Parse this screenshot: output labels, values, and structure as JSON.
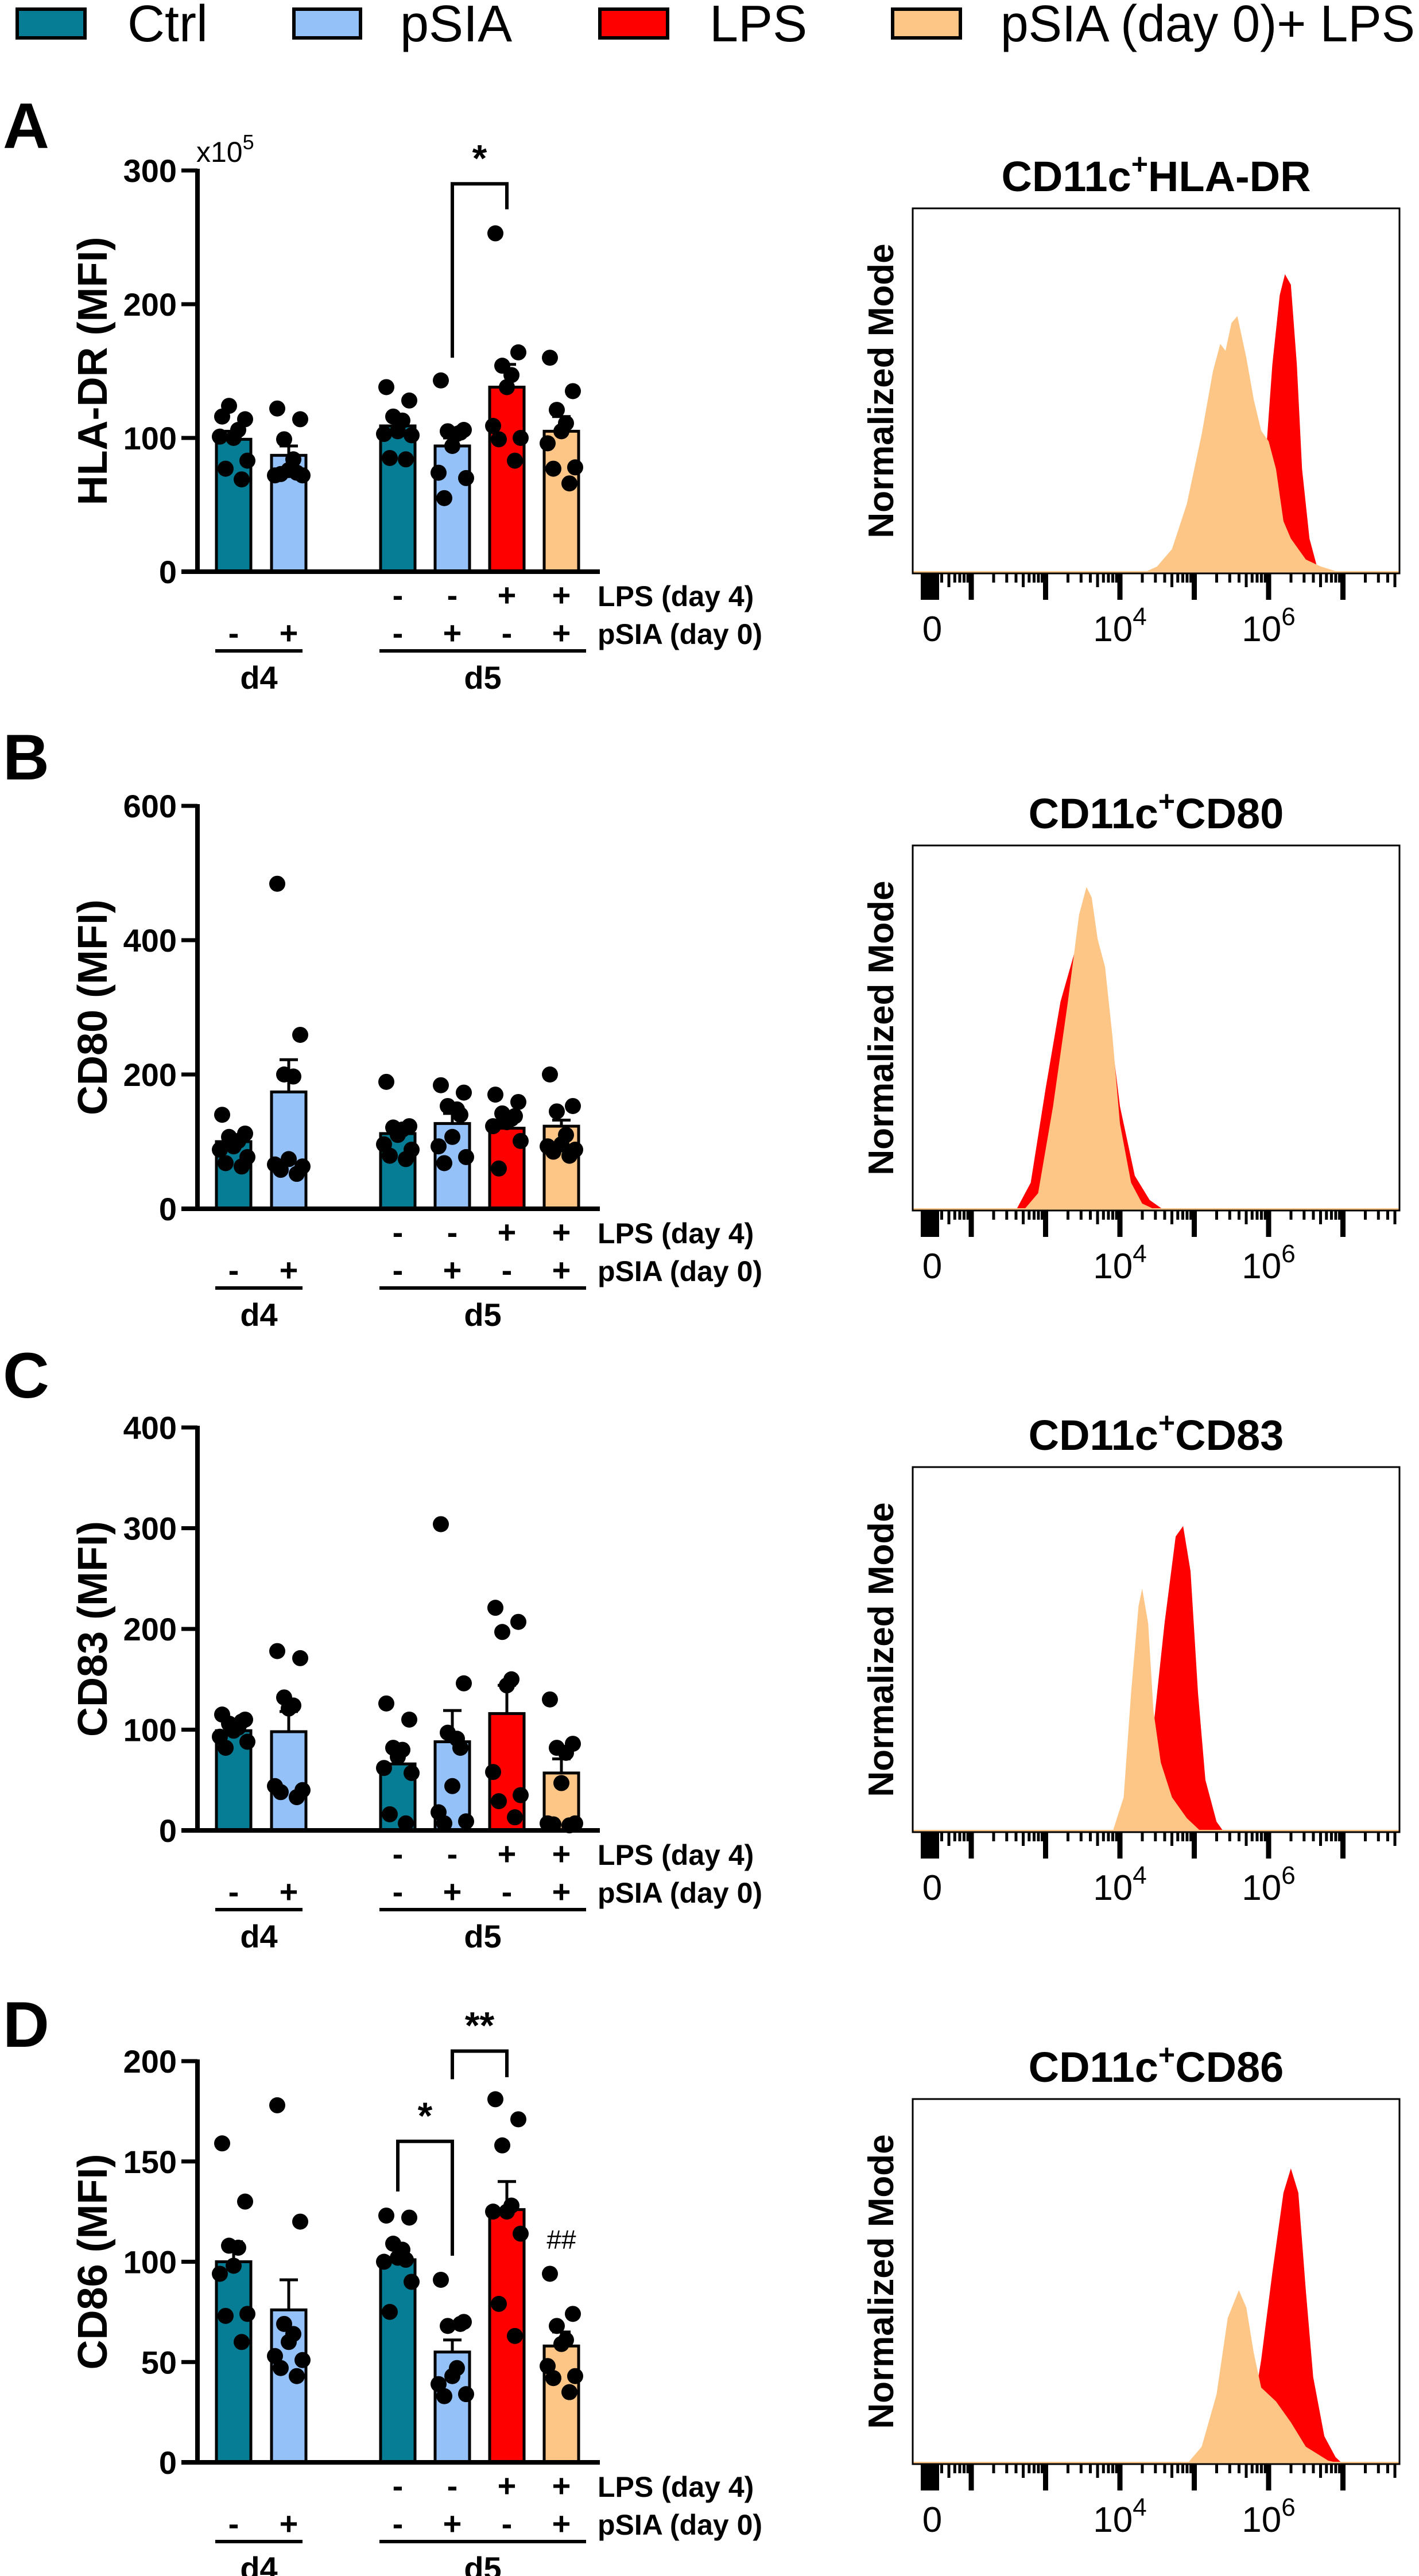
{
  "colors": {
    "Ctrl": "#067d94",
    "pSIA": "#94c1f8",
    "LPS": "#fe0000",
    "pSIA_LPS": "#fdc687"
  },
  "legend": [
    {
      "label": "Ctrl",
      "color": "#067d94"
    },
    {
      "label": "pSIA",
      "color": "#94c1f8"
    },
    {
      "label": "LPS",
      "color": "#fe0000"
    },
    {
      "label": "pSIA (day 0)+ LPS",
      "color": "#fdc687"
    }
  ],
  "chart_data": [
    {
      "panel": "A",
      "type": "bar",
      "ylabel": "HLA-DR (MFI)",
      "y_multiplier": {
        "base": "x10",
        "exp": "5"
      },
      "ylim": [
        0,
        300
      ],
      "yticks": [
        0,
        100,
        200,
        300
      ],
      "categories": [
        "Ctrl d4",
        "pSIA d4",
        "Ctrl d5",
        "pSIA d5",
        "LPS d5",
        "pSIA (day 0)+ LPS d5"
      ],
      "bar_colors": [
        "#067d94",
        "#94c1f8",
        "#067d94",
        "#94c1f8",
        "#fe0000",
        "#fdc687"
      ],
      "values": [
        99,
        87,
        109,
        94,
        138,
        105
      ],
      "sem": [
        6,
        7,
        5,
        6,
        17,
        11
      ],
      "points": [
        [
          116,
          114,
          124,
          106,
          100,
          101,
          83,
          77,
          69
        ],
        [
          122,
          114,
          99,
          84,
          76,
          72,
          72,
          73,
          74
        ],
        [
          138,
          128,
          116,
          113,
          105,
          103,
          102,
          85,
          84
        ],
        [
          143,
          106,
          105,
          103,
          94,
          74,
          70,
          55,
          104
        ],
        [
          253,
          164,
          154,
          147,
          138,
          109,
          100,
          99,
          83
        ],
        [
          160,
          135,
          121,
          111,
          105,
          96,
          78,
          77,
          66
        ]
      ],
      "significance": [
        {
          "from": 3,
          "to": 4,
          "label": "*",
          "y_top": 290,
          "left_from": 160,
          "right_to": 271
        }
      ],
      "annotations": [],
      "row_names": [
        "LPS (day 4)",
        "pSIA (day 0)"
      ],
      "row_lps": [
        "",
        "",
        "-",
        "-",
        "+",
        "+"
      ],
      "row_psia": [
        "-",
        "+",
        "-",
        "+",
        "-",
        "+"
      ],
      "groups": [
        {
          "label": "d4",
          "from": 0,
          "to": 1
        },
        {
          "label": "d5",
          "from": 2,
          "to": 5
        }
      ]
    },
    {
      "panel": "A",
      "type": "area",
      "title": {
        "main": "CD11c",
        "sup": "+",
        "rest": "HLA-DR"
      },
      "ylabel": "Normalized Mode",
      "x_scale": "log10",
      "xticks": [
        {
          "value": 0,
          "label": "0"
        },
        {
          "value": 4,
          "base": "10",
          "exp": "4"
        },
        {
          "value": 6,
          "base": "10",
          "exp": "6"
        }
      ],
      "series": [
        {
          "name": "LPS",
          "color": "#fe0000",
          "points": [
            [
              5.7,
              0
            ],
            [
              5.85,
              0.1
            ],
            [
              5.95,
              0.3
            ],
            [
              6.05,
              0.6
            ],
            [
              6.15,
              0.8
            ],
            [
              6.22,
              0.86
            ],
            [
              6.3,
              0.83
            ],
            [
              6.38,
              0.6
            ],
            [
              6.45,
              0.3
            ],
            [
              6.55,
              0.1
            ],
            [
              6.65,
              0.02
            ],
            [
              6.8,
              0
            ]
          ]
        },
        {
          "name": "pSIA (day 0)+ LPS",
          "color": "#fdc687",
          "points": [
            [
              4.3,
              0
            ],
            [
              4.5,
              0.02
            ],
            [
              4.7,
              0.07
            ],
            [
              4.9,
              0.2
            ],
            [
              5.1,
              0.4
            ],
            [
              5.25,
              0.58
            ],
            [
              5.35,
              0.66
            ],
            [
              5.42,
              0.64
            ],
            [
              5.5,
              0.72
            ],
            [
              5.58,
              0.74
            ],
            [
              5.7,
              0.62
            ],
            [
              5.8,
              0.5
            ],
            [
              5.9,
              0.41
            ],
            [
              6.0,
              0.38
            ],
            [
              6.1,
              0.3
            ],
            [
              6.2,
              0.15
            ],
            [
              6.3,
              0.1
            ],
            [
              6.5,
              0.04
            ],
            [
              6.7,
              0.02
            ],
            [
              7.0,
              0
            ]
          ]
        }
      ]
    },
    {
      "panel": "B",
      "type": "bar",
      "ylabel": "CD80 (MFI)",
      "ylim": [
        0,
        600
      ],
      "yticks": [
        0,
        200,
        400,
        600
      ],
      "categories": [
        "Ctrl d4",
        "pSIA d4",
        "Ctrl d5",
        "pSIA d5",
        "LPS d5",
        "pSIA (day 0)+ LPS d5"
      ],
      "bar_colors": [
        "#067d94",
        "#94c1f8",
        "#067d94",
        "#94c1f8",
        "#fe0000",
        "#fdc687"
      ],
      "values": [
        100,
        174,
        112,
        127,
        120,
        123
      ],
      "sem": [
        8,
        48,
        11,
        15,
        10,
        9
      ],
      "points": [
        [
          140,
          112,
          107,
          101,
          93,
          88,
          77,
          68,
          63
        ],
        [
          484,
          259,
          200,
          197,
          74,
          66,
          63,
          58,
          52
        ],
        [
          189,
          123,
          121,
          118,
          110,
          96,
          88,
          79,
          74
        ],
        [
          184,
          173,
          153,
          148,
          107,
          93,
          77,
          68,
          140
        ],
        [
          170,
          159,
          142,
          134,
          129,
          123,
          101,
          60,
          138
        ],
        [
          200,
          153,
          145,
          110,
          96,
          93,
          88,
          85,
          79
        ]
      ],
      "significance": [],
      "annotations": [],
      "row_names": [
        "LPS (day 4)",
        "pSIA (day 0)"
      ],
      "row_lps": [
        "",
        "",
        "-",
        "-",
        "+",
        "+"
      ],
      "row_psia": [
        "-",
        "+",
        "-",
        "+",
        "-",
        "+"
      ],
      "groups": [
        {
          "label": "d4",
          "from": 0,
          "to": 1
        },
        {
          "label": "d5",
          "from": 2,
          "to": 5
        }
      ]
    },
    {
      "panel": "B",
      "type": "area",
      "title": {
        "main": "CD11c",
        "sup": "+",
        "rest": "CD80"
      },
      "ylabel": "Normalized Mode",
      "x_scale": "log10",
      "xticks": [
        {
          "value": 0,
          "label": "0"
        },
        {
          "value": 4,
          "base": "10",
          "exp": "4"
        },
        {
          "value": 6,
          "base": "10",
          "exp": "6"
        }
      ],
      "series": [
        {
          "name": "LPS",
          "color": "#fe0000",
          "points": [
            [
              2.6,
              0
            ],
            [
              2.8,
              0.08
            ],
            [
              3.0,
              0.35
            ],
            [
              3.2,
              0.6
            ],
            [
              3.4,
              0.75
            ],
            [
              3.6,
              0.8
            ],
            [
              3.8,
              0.65
            ],
            [
              4.0,
              0.3
            ],
            [
              4.2,
              0.1
            ],
            [
              4.4,
              0.03
            ],
            [
              4.6,
              0
            ]
          ]
        },
        {
          "name": "pSIA (day 0)+ LPS",
          "color": "#fdc687",
          "points": [
            [
              2.7,
              0
            ],
            [
              2.9,
              0.05
            ],
            [
              3.1,
              0.3
            ],
            [
              3.3,
              0.6
            ],
            [
              3.45,
              0.85
            ],
            [
              3.55,
              0.93
            ],
            [
              3.62,
              0.9
            ],
            [
              3.7,
              0.78
            ],
            [
              3.8,
              0.7
            ],
            [
              3.9,
              0.5
            ],
            [
              4.0,
              0.25
            ],
            [
              4.15,
              0.08
            ],
            [
              4.3,
              0.02
            ],
            [
              4.5,
              0
            ]
          ]
        }
      ]
    },
    {
      "panel": "C",
      "type": "bar",
      "ylabel": "CD83 (MFI)",
      "ylim": [
        0,
        400
      ],
      "yticks": [
        0,
        100,
        200,
        300,
        400
      ],
      "categories": [
        "Ctrl d4",
        "pSIA d4",
        "Ctrl d5",
        "pSIA d5",
        "LPS d5",
        "pSIA (day 0)+ LPS d5"
      ],
      "bar_colors": [
        "#067d94",
        "#94c1f8",
        "#067d94",
        "#94c1f8",
        "#fe0000",
        "#fdc687"
      ],
      "values": [
        99,
        98,
        66,
        88,
        116,
        57
      ],
      "sem": [
        4,
        20,
        14,
        31,
        28,
        14
      ],
      "points": [
        [
          115,
          110,
          106,
          102,
          99,
          93,
          88,
          82,
          108
        ],
        [
          178,
          171,
          132,
          124,
          121,
          44,
          40,
          38,
          33
        ],
        [
          126,
          110,
          82,
          80,
          73,
          62,
          57,
          16,
          7
        ],
        [
          304,
          146,
          97,
          91,
          44,
          18,
          9,
          7,
          82
        ],
        [
          221,
          207,
          197,
          150,
          144,
          58,
          35,
          29,
          13
        ],
        [
          130,
          86,
          82,
          77,
          47,
          7,
          7,
          6,
          5
        ]
      ],
      "significance": [],
      "annotations": [],
      "row_names": [
        "LPS (day 4)",
        "pSIA (day 0)"
      ],
      "row_lps": [
        "",
        "",
        "-",
        "-",
        "+",
        "+"
      ],
      "row_psia": [
        "-",
        "+",
        "-",
        "+",
        "-",
        "+"
      ],
      "groups": [
        {
          "label": "d4",
          "from": 0,
          "to": 1
        },
        {
          "label": "d5",
          "from": 2,
          "to": 5
        }
      ]
    },
    {
      "panel": "C",
      "type": "area",
      "title": {
        "main": "CD11c",
        "sup": "+",
        "rest": "CD83"
      },
      "ylabel": "Normalized Mode",
      "x_scale": "log10",
      "xticks": [
        {
          "value": 0,
          "label": "0"
        },
        {
          "value": 4,
          "base": "10",
          "exp": "4"
        },
        {
          "value": 6,
          "base": "10",
          "exp": "6"
        }
      ],
      "series": [
        {
          "name": "LPS",
          "color": "#fe0000",
          "points": [
            [
              4.3,
              0
            ],
            [
              4.45,
              0.3
            ],
            [
              4.6,
              0.6
            ],
            [
              4.75,
              0.85
            ],
            [
              4.85,
              0.88
            ],
            [
              4.95,
              0.75
            ],
            [
              5.05,
              0.4
            ],
            [
              5.15,
              0.15
            ],
            [
              5.3,
              0.03
            ],
            [
              5.4,
              0
            ]
          ]
        },
        {
          "name": "pSIA (day 0)+ LPS",
          "color": "#fdc687",
          "points": [
            [
              3.9,
              0
            ],
            [
              4.05,
              0.1
            ],
            [
              4.15,
              0.4
            ],
            [
              4.25,
              0.65
            ],
            [
              4.3,
              0.7
            ],
            [
              4.38,
              0.6
            ],
            [
              4.45,
              0.35
            ],
            [
              4.55,
              0.2
            ],
            [
              4.7,
              0.1
            ],
            [
              4.9,
              0.04
            ],
            [
              5.1,
              0
            ]
          ]
        }
      ]
    },
    {
      "panel": "D",
      "type": "bar",
      "ylabel": "CD86 (MFI)",
      "ylim": [
        0,
        200
      ],
      "yticks": [
        0,
        50,
        100,
        150,
        200
      ],
      "categories": [
        "Ctrl d4",
        "pSIA d4",
        "Ctrl d5",
        "pSIA d5",
        "LPS d5",
        "pSIA (day 0)+ LPS d5"
      ],
      "bar_colors": [
        "#067d94",
        "#94c1f8",
        "#067d94",
        "#94c1f8",
        "#fe0000",
        "#fdc687"
      ],
      "values": [
        100,
        76,
        101,
        55,
        126,
        58
      ],
      "sem": [
        10,
        15,
        7,
        6,
        14,
        7
      ],
      "points": [
        [
          159,
          130,
          108,
          107,
          98,
          94,
          74,
          73,
          60
        ],
        [
          178,
          120,
          69,
          64,
          60,
          53,
          51,
          47,
          43
        ],
        [
          123,
          122,
          109,
          106,
          102,
          100,
          90,
          75,
          101
        ],
        [
          91,
          70,
          68,
          47,
          43,
          39,
          34,
          33,
          69
        ],
        [
          181,
          171,
          158,
          128,
          125,
          125,
          114,
          79,
          63
        ],
        [
          94,
          74,
          68,
          61,
          59,
          48,
          43,
          42,
          35
        ]
      ],
      "significance": [
        {
          "from": 2,
          "to": 3,
          "label": "*",
          "y_top": 160,
          "left_from": 135,
          "right_to": 103
        },
        {
          "from": 3,
          "to": 4,
          "label": "**",
          "y_top": 205,
          "left_from": 191,
          "right_to": 192
        }
      ],
      "annotations": [
        {
          "bar": 5,
          "label": "##",
          "y": 111
        }
      ],
      "row_names": [
        "LPS (day 4)",
        "pSIA (day 0)"
      ],
      "row_lps": [
        "",
        "",
        "-",
        "-",
        "+",
        "+"
      ],
      "row_psia": [
        "-",
        "+",
        "-",
        "+",
        "-",
        "+"
      ],
      "groups": [
        {
          "label": "d4",
          "from": 0,
          "to": 1
        },
        {
          "label": "d5",
          "from": 2,
          "to": 5
        }
      ]
    },
    {
      "panel": "D",
      "type": "area",
      "title": {
        "main": "CD11c",
        "sup": "+",
        "rest": "CD86"
      },
      "ylabel": "Normalized Mode",
      "x_scale": "log10",
      "xticks": [
        {
          "value": 0,
          "label": "0"
        },
        {
          "value": 4,
          "base": "10",
          "exp": "4"
        },
        {
          "value": 6,
          "base": "10",
          "exp": "6"
        }
      ],
      "series": [
        {
          "name": "LPS",
          "color": "#fe0000",
          "points": [
            [
              5.6,
              0
            ],
            [
              5.75,
              0.1
            ],
            [
              5.9,
              0.3
            ],
            [
              6.05,
              0.55
            ],
            [
              6.2,
              0.78
            ],
            [
              6.3,
              0.85
            ],
            [
              6.4,
              0.78
            ],
            [
              6.5,
              0.5
            ],
            [
              6.6,
              0.25
            ],
            [
              6.75,
              0.08
            ],
            [
              6.9,
              0.02
            ],
            [
              7.0,
              0
            ]
          ]
        },
        {
          "name": "pSIA (day 0)+ LPS",
          "color": "#fdc687",
          "points": [
            [
              4.9,
              0
            ],
            [
              5.1,
              0.05
            ],
            [
              5.3,
              0.2
            ],
            [
              5.45,
              0.42
            ],
            [
              5.6,
              0.5
            ],
            [
              5.7,
              0.45
            ],
            [
              5.8,
              0.32
            ],
            [
              5.9,
              0.22
            ],
            [
              6.0,
              0.2
            ],
            [
              6.1,
              0.18
            ],
            [
              6.3,
              0.12
            ],
            [
              6.5,
              0.05
            ],
            [
              6.8,
              0.01
            ],
            [
              7.0,
              0
            ]
          ]
        }
      ]
    }
  ]
}
